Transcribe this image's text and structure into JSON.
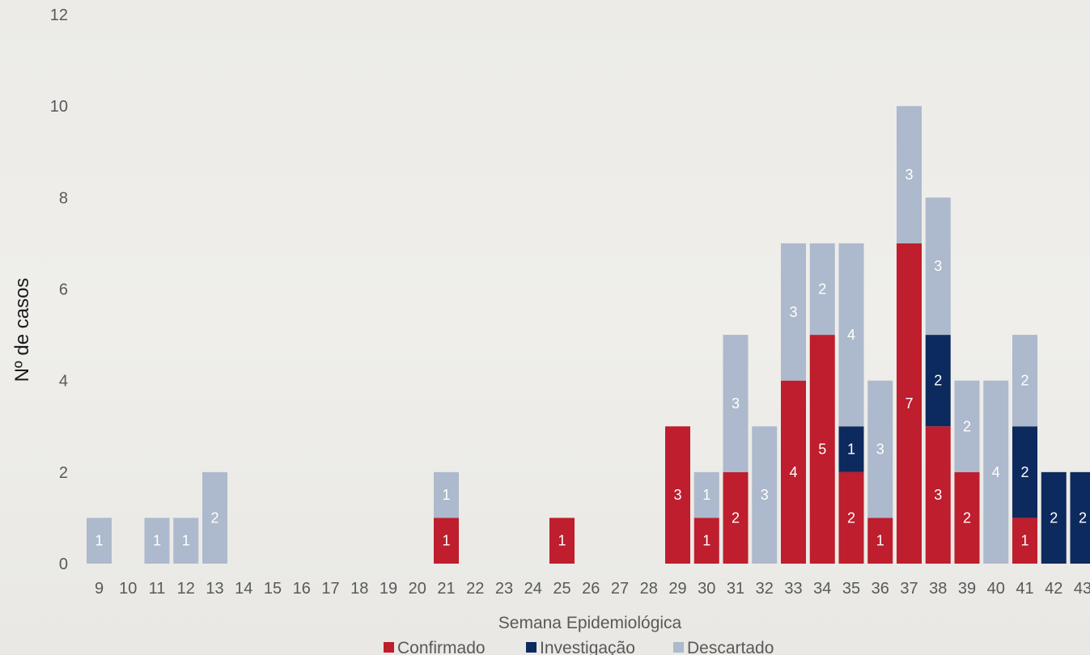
{
  "chart_data": {
    "type": "bar",
    "stacked": true,
    "xlabel": "Semana Epidemiológica",
    "ylabel": "Nº de casos",
    "ylim": [
      0,
      12
    ],
    "yticks": [
      0,
      2,
      4,
      6,
      8,
      10,
      12
    ],
    "grid": false,
    "legend_position": "bottom",
    "categories": [
      "9",
      "10",
      "11",
      "12",
      "13",
      "14",
      "15",
      "16",
      "17",
      "18",
      "19",
      "20",
      "21",
      "22",
      "23",
      "24",
      "25",
      "26",
      "27",
      "28",
      "29",
      "30",
      "31",
      "32",
      "33",
      "34",
      "35",
      "36",
      "37",
      "38",
      "39",
      "40",
      "41",
      "42",
      "43"
    ],
    "series": [
      {
        "name": "Confirmado",
        "color": "#be1e2d",
        "values": [
          0,
          0,
          0,
          0,
          0,
          0,
          0,
          0,
          0,
          0,
          0,
          0,
          1,
          0,
          0,
          0,
          1,
          0,
          0,
          0,
          3,
          1,
          2,
          0,
          4,
          5,
          2,
          1,
          7,
          3,
          2,
          0,
          1,
          0,
          0
        ]
      },
      {
        "name": "Investigação",
        "color": "#0d2a5e",
        "values": [
          0,
          0,
          0,
          0,
          0,
          0,
          0,
          0,
          0,
          0,
          0,
          0,
          0,
          0,
          0,
          0,
          0,
          0,
          0,
          0,
          0,
          0,
          0,
          0,
          0,
          0,
          1,
          0,
          0,
          2,
          0,
          0,
          2,
          2,
          2
        ]
      },
      {
        "name": "Descartado",
        "color": "#adb9cc",
        "values": [
          1,
          0,
          1,
          1,
          2,
          0,
          0,
          0,
          0,
          0,
          0,
          0,
          1,
          0,
          0,
          0,
          0,
          0,
          0,
          0,
          0,
          1,
          3,
          3,
          3,
          2,
          4,
          3,
          3,
          3,
          2,
          4,
          2,
          0,
          0
        ]
      }
    ]
  }
}
